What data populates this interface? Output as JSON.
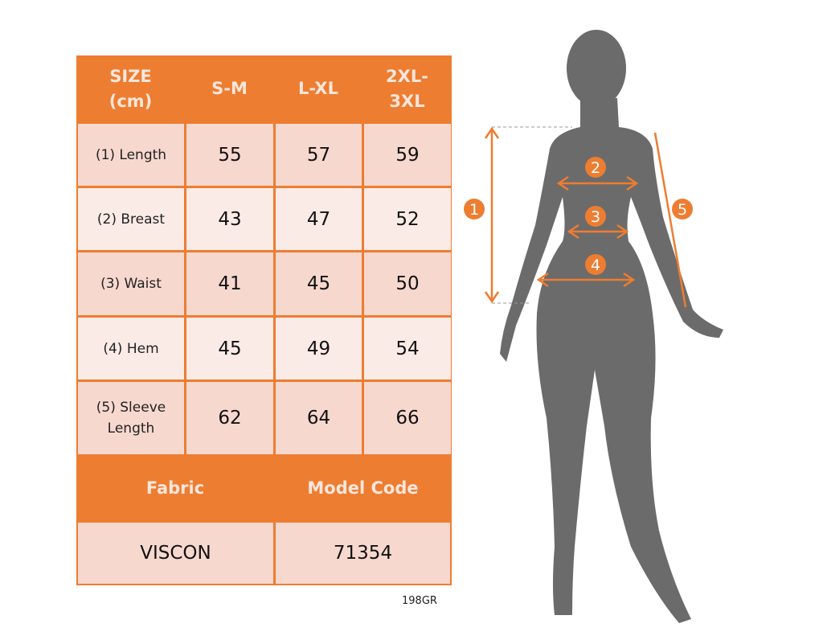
{
  "table": {
    "header": [
      "SIZE\n(cm)",
      "S-M",
      "L-XL",
      "2XL-\n3XL"
    ],
    "rows": [
      {
        "label": "(1) Length",
        "values": [
          "55",
          "57",
          "59"
        ]
      },
      {
        "label": "(2) Breast",
        "values": [
          "43",
          "47",
          "52"
        ]
      },
      {
        "label": "(3) Waist",
        "values": [
          "41",
          "45",
          "50"
        ]
      },
      {
        "label": "(4) Hem",
        "values": [
          "45",
          "49",
          "54"
        ]
      },
      {
        "label": "(5) Sleeve\nLength",
        "values": [
          "62",
          "64",
          "66"
        ]
      }
    ],
    "fabric_label": "Fabric",
    "model_code_label": "Model Code",
    "fabric_value": "VISCON",
    "model_code_value": "71354"
  },
  "footer_code": "198GR",
  "figure": {
    "markers": [
      "1",
      "2",
      "3",
      "4",
      "5"
    ]
  },
  "colors": {
    "accent": "#ed7d31",
    "row_dark": "#f7d8cf",
    "row_light": "#fbebe7",
    "silhouette": "#6b6b6b"
  }
}
